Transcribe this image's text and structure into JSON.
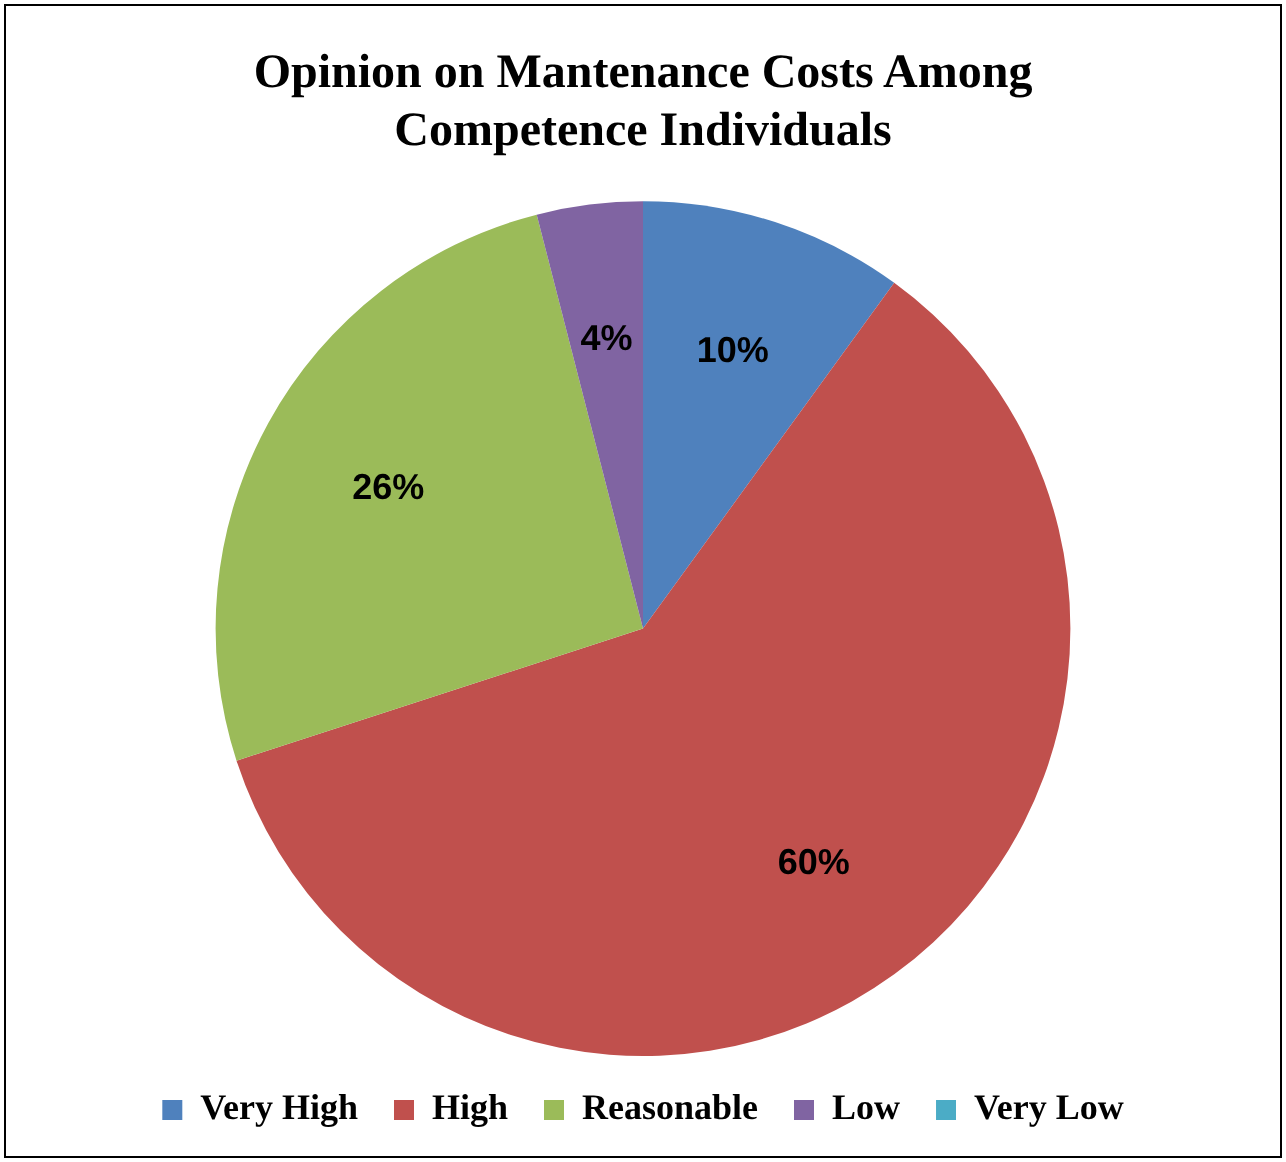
{
  "chart_data": {
    "type": "pie",
    "title": "Opinion on Mantenance Costs Among Competence Individuals",
    "categories": [
      "Very High",
      "High",
      "Reasonable",
      "Low",
      "Very Low"
    ],
    "values": [
      10,
      60,
      26,
      4,
      0
    ],
    "colors": [
      "#4f81bd",
      "#c0504d",
      "#9bbb59",
      "#8064a2",
      "#4bacc6"
    ],
    "value_labels": [
      "10%",
      "60%",
      "26%",
      "4%",
      null
    ],
    "legend": "bottom"
  }
}
